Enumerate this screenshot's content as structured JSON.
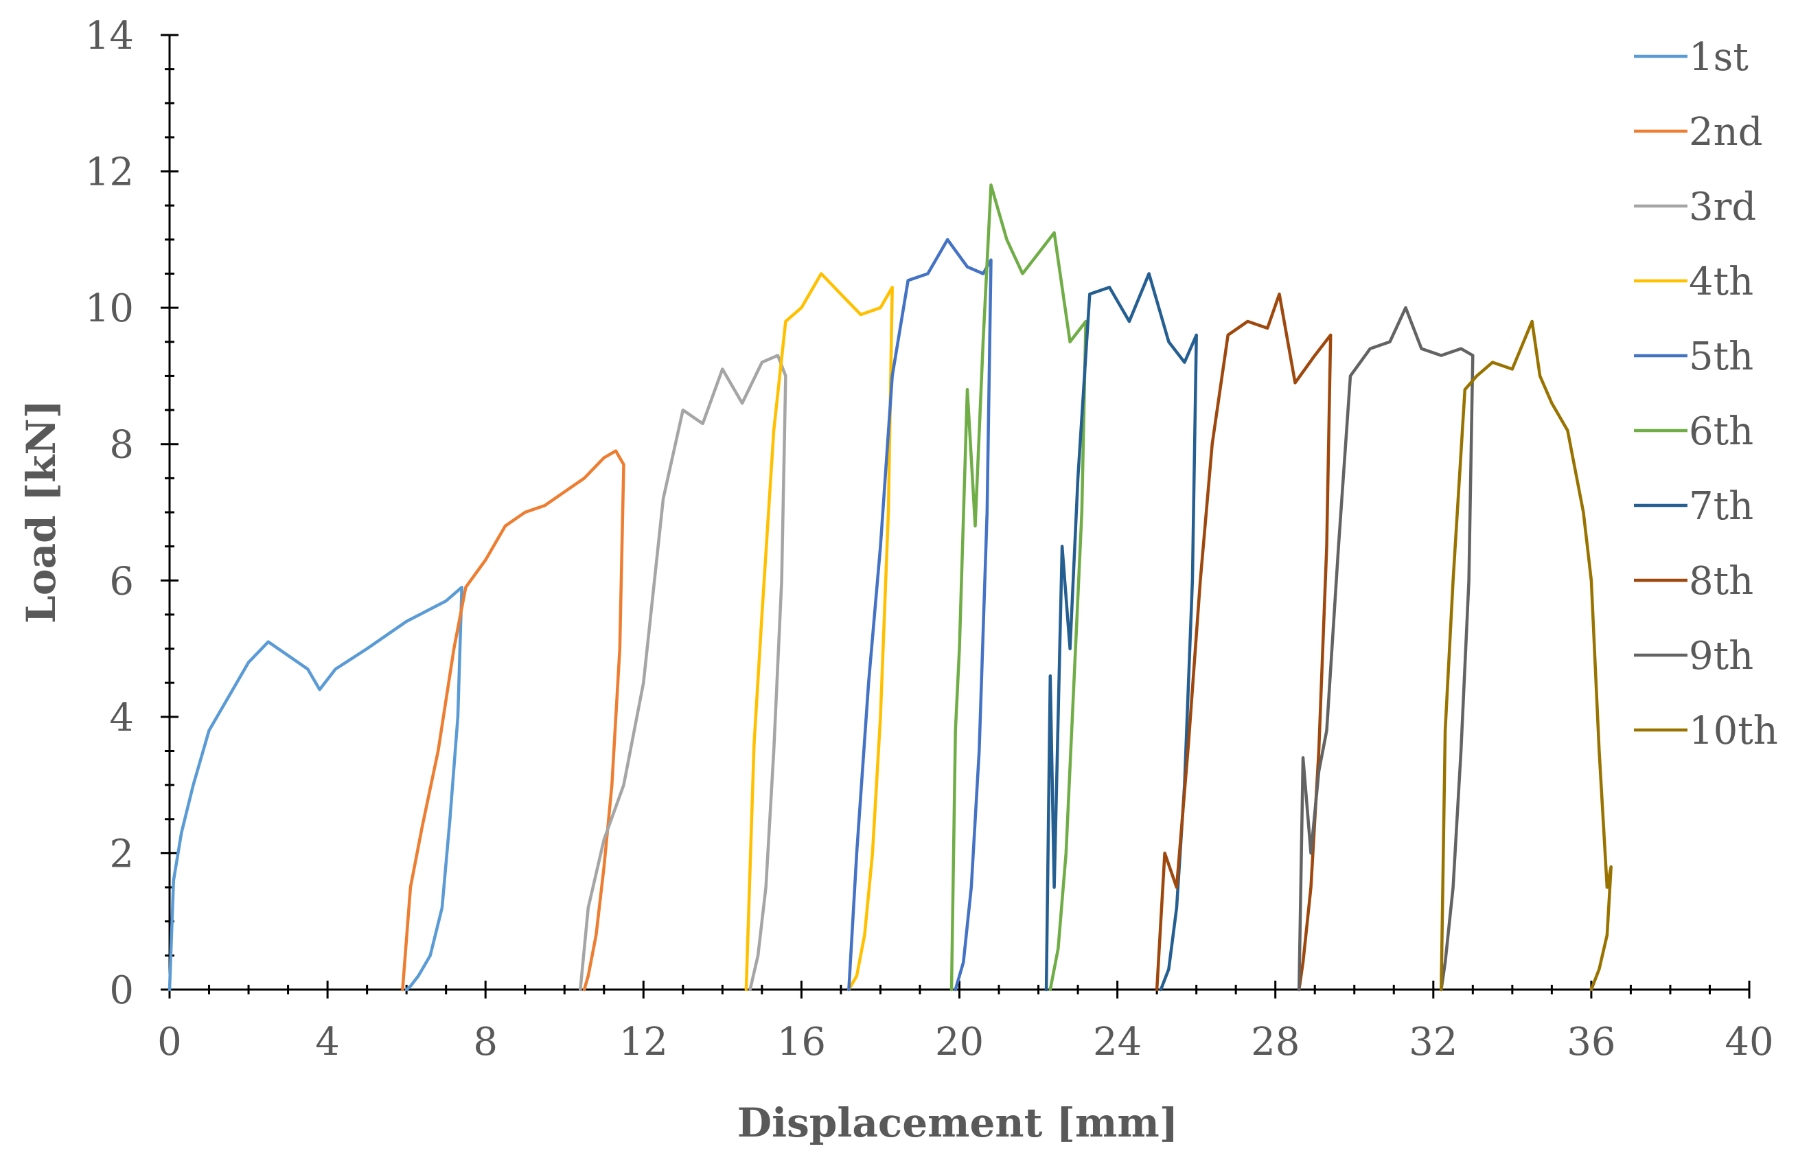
{
  "chart_data": {
    "type": "line",
    "title": "",
    "xlabel": "Displacement [mm]",
    "ylabel": "Load [kN]",
    "xlim": [
      0,
      40
    ],
    "ylim": [
      0,
      14
    ],
    "xticks": [
      "0",
      "4",
      "8",
      "12",
      "16",
      "20",
      "24",
      "28",
      "32",
      "36",
      "40"
    ],
    "yticks": [
      "0",
      "2",
      "4",
      "6",
      "8",
      "10",
      "12",
      "14"
    ],
    "grid": false,
    "legend_position": "right",
    "series": [
      {
        "name": "1st",
        "color": "#5B9BD5",
        "x": [
          0,
          0.1,
          0.3,
          0.6,
          1.0,
          1.5,
          2.0,
          2.5,
          3.0,
          3.5,
          3.8,
          4.2,
          5.0,
          6.0,
          7.0,
          7.4,
          7.3,
          7.1,
          6.9,
          6.6,
          6.3,
          6.1,
          6.0
        ],
        "y": [
          0,
          1.6,
          2.3,
          3.0,
          3.8,
          4.3,
          4.8,
          5.1,
          4.9,
          4.7,
          4.4,
          4.7,
          5.0,
          5.4,
          5.7,
          5.9,
          4.0,
          2.5,
          1.2,
          0.5,
          0.2,
          0.05,
          0
        ]
      },
      {
        "name": "2nd",
        "color": "#ED7D31",
        "x": [
          5.9,
          6.1,
          6.4,
          6.8,
          7.2,
          7.5,
          8.0,
          8.5,
          9.0,
          9.5,
          10.0,
          10.5,
          11.0,
          11.3,
          11.5,
          11.4,
          11.2,
          11.0,
          10.8,
          10.6,
          10.5
        ],
        "y": [
          0,
          1.5,
          2.4,
          3.5,
          5.0,
          5.9,
          6.3,
          6.8,
          7.0,
          7.1,
          7.3,
          7.5,
          7.8,
          7.9,
          7.7,
          5.0,
          3.0,
          1.8,
          0.8,
          0.2,
          0
        ]
      },
      {
        "name": "3rd",
        "color": "#A5A5A5",
        "x": [
          10.4,
          10.6,
          11.0,
          11.5,
          12.0,
          12.5,
          13.0,
          13.5,
          14.0,
          14.5,
          15.0,
          15.4,
          15.6,
          15.5,
          15.3,
          15.1,
          14.9,
          14.7
        ],
        "y": [
          0,
          1.2,
          2.2,
          3.0,
          4.5,
          7.2,
          8.5,
          8.3,
          9.1,
          8.6,
          9.2,
          9.3,
          9.0,
          6.0,
          3.5,
          1.5,
          0.5,
          0
        ]
      },
      {
        "name": "4th",
        "color": "#FFC000",
        "x": [
          14.6,
          14.8,
          15.0,
          15.3,
          15.6,
          16.0,
          16.5,
          17.0,
          17.5,
          18.0,
          18.3,
          18.2,
          18.0,
          17.8,
          17.6,
          17.4,
          17.2
        ],
        "y": [
          0,
          3.6,
          5.5,
          8.2,
          9.8,
          10.0,
          10.5,
          10.2,
          9.9,
          10.0,
          10.3,
          7.0,
          4.0,
          2.0,
          0.8,
          0.2,
          0
        ]
      },
      {
        "name": "5th",
        "color": "#4472C4",
        "x": [
          17.2,
          17.4,
          17.7,
          18.0,
          18.3,
          18.7,
          19.2,
          19.7,
          20.2,
          20.6,
          20.8,
          20.7,
          20.5,
          20.3,
          20.1,
          19.9
        ],
        "y": [
          0,
          2.0,
          4.5,
          6.5,
          9.0,
          10.4,
          10.5,
          11.0,
          10.6,
          10.5,
          10.7,
          7.0,
          3.5,
          1.5,
          0.4,
          0
        ]
      },
      {
        "name": "6th",
        "color": "#70AD47",
        "x": [
          19.8,
          19.9,
          20.0,
          20.2,
          20.4,
          20.6,
          20.8,
          21.2,
          21.6,
          22.0,
          22.4,
          22.8,
          23.2,
          23.1,
          22.9,
          22.7,
          22.5,
          22.3
        ],
        "y": [
          0,
          3.8,
          5.0,
          8.8,
          6.8,
          9.5,
          11.8,
          11.0,
          10.5,
          10.8,
          11.1,
          9.5,
          9.8,
          7.0,
          4.5,
          2.0,
          0.6,
          0
        ]
      },
      {
        "name": "7th",
        "color": "#255E91",
        "x": [
          22.2,
          22.3,
          22.4,
          22.6,
          22.8,
          23.0,
          23.3,
          23.8,
          24.3,
          24.8,
          25.3,
          25.7,
          26.0,
          25.9,
          25.7,
          25.5,
          25.3,
          25.1
        ],
        "y": [
          0,
          4.6,
          1.5,
          6.5,
          5.0,
          7.5,
          10.2,
          10.3,
          9.8,
          10.5,
          9.5,
          9.2,
          9.6,
          6.0,
          3.0,
          1.2,
          0.3,
          0
        ]
      },
      {
        "name": "8th",
        "color": "#9E480E",
        "x": [
          25.0,
          25.2,
          25.5,
          25.8,
          26.1,
          26.4,
          26.8,
          27.3,
          27.8,
          28.1,
          28.5,
          29.0,
          29.4,
          29.3,
          29.1,
          28.9,
          28.7,
          28.6
        ],
        "y": [
          0,
          2.0,
          1.5,
          3.6,
          6.0,
          8.0,
          9.6,
          9.8,
          9.7,
          10.2,
          8.9,
          9.3,
          9.6,
          6.5,
          3.5,
          1.5,
          0.4,
          0
        ]
      },
      {
        "name": "9th",
        "color": "#636363",
        "x": [
          28.6,
          28.7,
          28.9,
          29.1,
          29.3,
          29.6,
          29.9,
          30.4,
          30.9,
          31.3,
          31.7,
          32.2,
          32.7,
          33.0,
          32.9,
          32.7,
          32.5,
          32.3,
          32.2
        ],
        "y": [
          0,
          3.4,
          2.0,
          3.2,
          3.8,
          6.5,
          9.0,
          9.4,
          9.5,
          10.0,
          9.4,
          9.3,
          9.4,
          9.3,
          6.0,
          3.5,
          1.5,
          0.4,
          0
        ]
      },
      {
        "name": "10th",
        "color": "#997300",
        "x": [
          32.2,
          32.3,
          32.5,
          32.8,
          33.1,
          33.5,
          34.0,
          34.5,
          34.7,
          35.0,
          35.4,
          35.8,
          36.0,
          36.2,
          36.4,
          36.5,
          36.4,
          36.2,
          36.0
        ],
        "y": [
          0,
          3.8,
          6.0,
          8.8,
          9.0,
          9.2,
          9.1,
          9.8,
          9.0,
          8.6,
          8.2,
          7.0,
          6.0,
          3.5,
          1.5,
          1.8,
          0.8,
          0.3,
          0
        ]
      }
    ]
  }
}
